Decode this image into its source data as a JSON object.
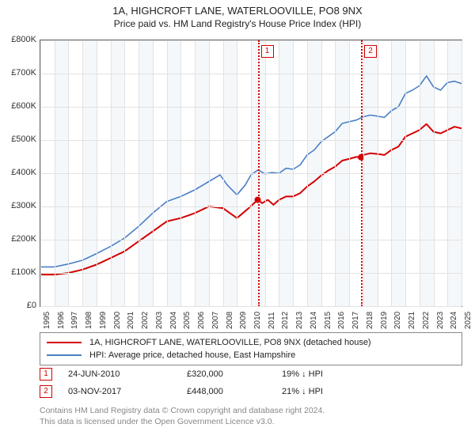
{
  "title_line1": "1A, HIGHCROFT LANE, WATERLOOVILLE, PO8 9NX",
  "title_line2": "Price paid vs. HM Land Registry's House Price Index (HPI)",
  "chart": {
    "type": "line",
    "background_color": "#ffffff",
    "band_color": "#f5f8fb",
    "grid_color": "#e2e2e2",
    "border_color": "#666666",
    "x_start_year": 1995,
    "x_end_year": 2025,
    "years": [
      "1995",
      "1996",
      "1997",
      "1998",
      "1999",
      "2000",
      "2001",
      "2002",
      "2003",
      "2004",
      "2005",
      "2006",
      "2007",
      "2008",
      "2009",
      "2010",
      "2011",
      "2012",
      "2013",
      "2014",
      "2015",
      "2016",
      "2017",
      "2018",
      "2019",
      "2020",
      "2021",
      "2022",
      "2023",
      "2024",
      "2025"
    ],
    "ylim": [
      0,
      800000
    ],
    "yticks": [
      0,
      100000,
      200000,
      300000,
      400000,
      500000,
      600000,
      700000,
      800000
    ],
    "ytick_labels": [
      "£0",
      "£100K",
      "£200K",
      "£300K",
      "£400K",
      "£500K",
      "£600K",
      "£700K",
      "£800K"
    ],
    "label_fontsize": 11,
    "series": {
      "property": {
        "label": "1A, HIGHCROFT LANE, WATERLOOVILLE, PO8 9NX (detached house)",
        "color": "#d40000",
        "line_width": 2,
        "data": [
          [
            1995.0,
            95000
          ],
          [
            1996.0,
            95000
          ],
          [
            1997.0,
            100000
          ],
          [
            1998.0,
            110000
          ],
          [
            1999.0,
            125000
          ],
          [
            2000.0,
            145000
          ],
          [
            2001.0,
            165000
          ],
          [
            2002.0,
            195000
          ],
          [
            2003.0,
            225000
          ],
          [
            2004.0,
            255000
          ],
          [
            2005.0,
            265000
          ],
          [
            2006.0,
            280000
          ],
          [
            2007.0,
            300000
          ],
          [
            2008.0,
            295000
          ],
          [
            2009.0,
            265000
          ],
          [
            2009.7,
            290000
          ],
          [
            2010.1,
            305000
          ],
          [
            2010.48,
            320000
          ],
          [
            2010.8,
            310000
          ],
          [
            2011.2,
            320000
          ],
          [
            2011.6,
            305000
          ],
          [
            2012.0,
            320000
          ],
          [
            2012.5,
            330000
          ],
          [
            2013.0,
            330000
          ],
          [
            2013.5,
            340000
          ],
          [
            2014.0,
            360000
          ],
          [
            2014.5,
            375000
          ],
          [
            2015.0,
            393000
          ],
          [
            2015.5,
            408000
          ],
          [
            2016.0,
            420000
          ],
          [
            2016.5,
            438000
          ],
          [
            2017.0,
            443000
          ],
          [
            2017.5,
            449000
          ],
          [
            2017.84,
            448000
          ],
          [
            2018.0,
            455000
          ],
          [
            2018.5,
            460000
          ],
          [
            2019.0,
            458000
          ],
          [
            2019.5,
            455000
          ],
          [
            2020.0,
            470000
          ],
          [
            2020.5,
            480000
          ],
          [
            2021.0,
            510000
          ],
          [
            2021.5,
            520000
          ],
          [
            2022.0,
            530000
          ],
          [
            2022.5,
            548000
          ],
          [
            2023.0,
            525000
          ],
          [
            2023.5,
            520000
          ],
          [
            2024.0,
            530000
          ],
          [
            2024.5,
            540000
          ],
          [
            2025.0,
            535000
          ]
        ]
      },
      "hpi": {
        "label": "HPI: Average price, detached house, East Hampshire",
        "color": "#4a7fc4",
        "line_width": 1.6,
        "data": [
          [
            1995.0,
            118000
          ],
          [
            1996.0,
            118000
          ],
          [
            1997.0,
            127000
          ],
          [
            1998.0,
            138000
          ],
          [
            1999.0,
            158000
          ],
          [
            2000.0,
            180000
          ],
          [
            2001.0,
            205000
          ],
          [
            2002.0,
            240000
          ],
          [
            2003.0,
            280000
          ],
          [
            2004.0,
            315000
          ],
          [
            2005.0,
            330000
          ],
          [
            2006.0,
            350000
          ],
          [
            2007.0,
            375000
          ],
          [
            2007.8,
            395000
          ],
          [
            2008.3,
            365000
          ],
          [
            2009.0,
            335000
          ],
          [
            2009.6,
            365000
          ],
          [
            2010.0,
            395000
          ],
          [
            2010.5,
            410000
          ],
          [
            2011.0,
            398000
          ],
          [
            2011.5,
            402000
          ],
          [
            2012.0,
            400000
          ],
          [
            2012.5,
            415000
          ],
          [
            2013.0,
            412000
          ],
          [
            2013.5,
            425000
          ],
          [
            2014.0,
            455000
          ],
          [
            2014.5,
            470000
          ],
          [
            2015.0,
            495000
          ],
          [
            2015.5,
            510000
          ],
          [
            2016.0,
            525000
          ],
          [
            2016.5,
            550000
          ],
          [
            2017.0,
            555000
          ],
          [
            2017.5,
            560000
          ],
          [
            2018.0,
            570000
          ],
          [
            2018.5,
            575000
          ],
          [
            2019.0,
            572000
          ],
          [
            2019.5,
            568000
          ],
          [
            2020.0,
            588000
          ],
          [
            2020.5,
            600000
          ],
          [
            2021.0,
            640000
          ],
          [
            2021.5,
            650000
          ],
          [
            2022.0,
            663000
          ],
          [
            2022.5,
            693000
          ],
          [
            2023.0,
            660000
          ],
          [
            2023.5,
            650000
          ],
          [
            2024.0,
            673000
          ],
          [
            2024.5,
            677000
          ],
          [
            2025.0,
            670000
          ]
        ]
      }
    },
    "sale_markers": [
      {
        "n": "1",
        "year": 2010.48,
        "price": 320000,
        "color": "#d40000"
      },
      {
        "n": "2",
        "year": 2017.84,
        "price": 448000,
        "color": "#d40000"
      }
    ]
  },
  "legend": {
    "border_color": "#888888",
    "rows": [
      {
        "color": "#d40000",
        "label_key": "chart.series.property.label"
      },
      {
        "color": "#4a7fc4",
        "label_key": "chart.series.hpi.label"
      }
    ]
  },
  "sales_table": [
    {
      "n": "1",
      "date": "24-JUN-2010",
      "price": "£320,000",
      "hpi": "19% ↓ HPI",
      "badge_color": "#d40000"
    },
    {
      "n": "2",
      "date": "03-NOV-2017",
      "price": "£448,000",
      "hpi": "21% ↓ HPI",
      "badge_color": "#d40000"
    }
  ],
  "attribution_line1": "Contains HM Land Registry data © Crown copyright and database right 2024.",
  "attribution_line2": "This data is licensed under the Open Government Licence v3.0."
}
